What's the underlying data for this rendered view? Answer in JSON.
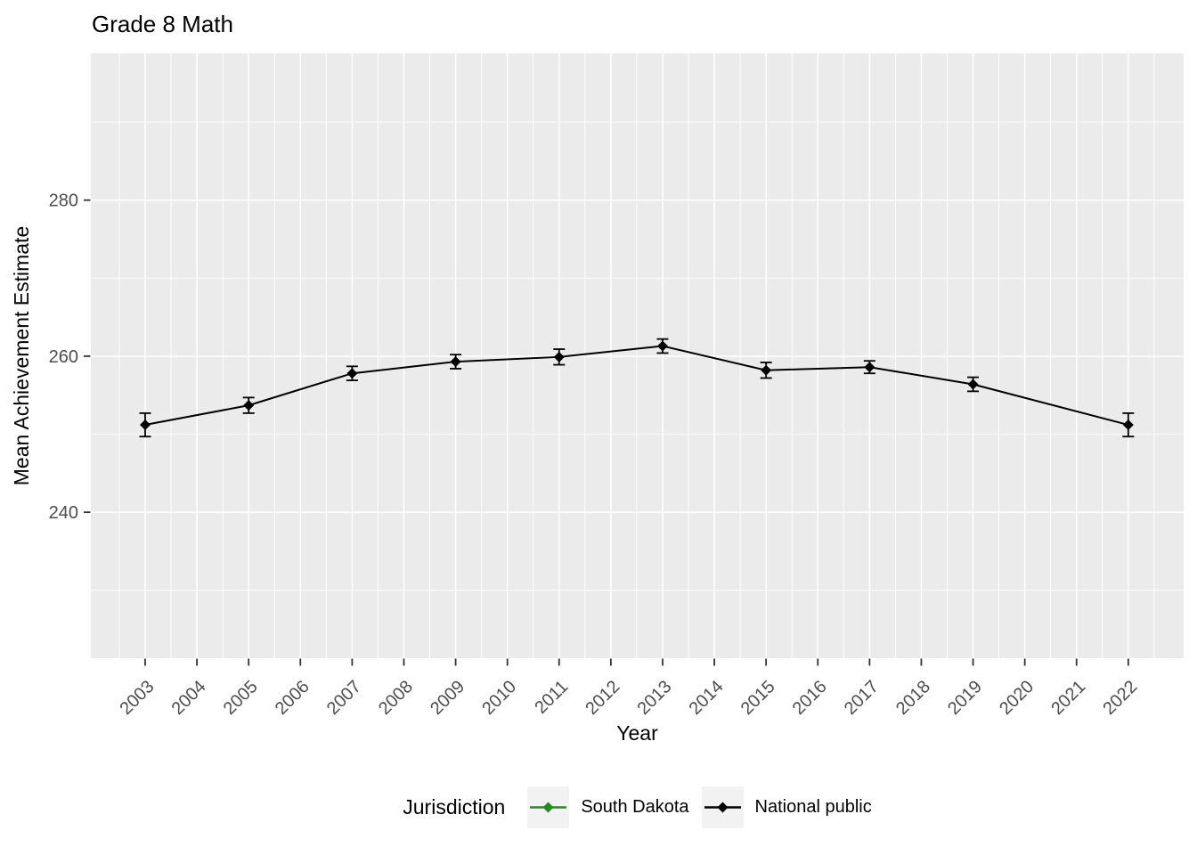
{
  "title": "Grade 8 Math",
  "axes": {
    "x_label": "Year",
    "y_label": "Mean Achievement Estimate"
  },
  "legend": {
    "title": "Jurisdiction",
    "items": [
      {
        "label": "South Dakota",
        "color": "#228B22"
      },
      {
        "label": "National public",
        "color": "#000000"
      }
    ]
  },
  "colors": {
    "panel_bg": "#EBEBEB",
    "grid": "#FFFFFF",
    "tick_text": "#4D4D4D",
    "tick_mark": "#333333",
    "legend_key_bg": "#F2F2F2",
    "text": "#000000"
  },
  "chart_data": {
    "type": "line",
    "title": "Grade 8 Math",
    "xlabel": "Year",
    "ylabel": "Mean Achievement Estimate",
    "x_ticks": [
      2003,
      2004,
      2005,
      2006,
      2007,
      2008,
      2009,
      2010,
      2011,
      2012,
      2013,
      2014,
      2015,
      2016,
      2017,
      2018,
      2019,
      2020,
      2021,
      2022
    ],
    "y_ticks": [
      240,
      260,
      280
    ],
    "y_minor_ticks": [
      230,
      250,
      270,
      290
    ],
    "xlim": [
      2001.95,
      2023.07
    ],
    "ylim": [
      221.3,
      298.8
    ],
    "grid": true,
    "x_tick_angle": 45,
    "legend_position": "bottom",
    "legend_title": "Jurisdiction",
    "marker": "diamond",
    "error_bars": true,
    "series": [
      {
        "name": "South Dakota",
        "color": "#228B22",
        "x": [],
        "values": [],
        "errors": []
      },
      {
        "name": "National public",
        "color": "#000000",
        "x": [
          2003,
          2005,
          2007,
          2009,
          2011,
          2013,
          2015,
          2017,
          2019,
          2022
        ],
        "values": [
          251.2,
          253.7,
          257.8,
          259.3,
          259.9,
          261.3,
          258.2,
          258.6,
          256.4,
          251.2
        ],
        "errors": [
          1.5,
          1.0,
          0.9,
          0.9,
          1.0,
          0.9,
          1.0,
          0.8,
          0.9,
          1.5
        ]
      }
    ]
  }
}
